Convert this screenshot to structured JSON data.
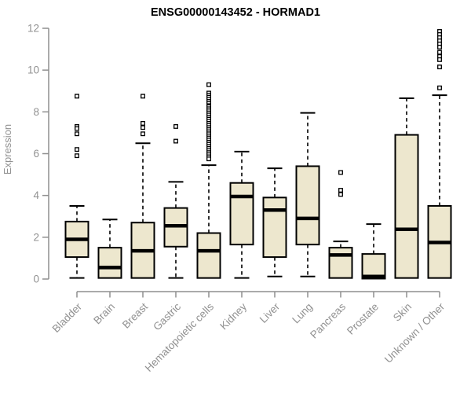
{
  "chart_data": {
    "type": "boxplot",
    "title": "ENSG00000143452 - HORMAD1",
    "ylabel": "Expression",
    "xlabel": "",
    "ylim": [
      0,
      12
    ],
    "yticks": [
      0,
      2,
      4,
      6,
      8,
      10,
      12
    ],
    "grid": false,
    "legend": "none",
    "colors": {
      "box_fill": "#ede7ce",
      "box_stroke": "#000000",
      "median": "#000000",
      "whisker": "#000000",
      "axis": "#8f8f8f",
      "tick_label": "#919191",
      "axis_label": "#919191",
      "title": "#000000",
      "background": "#ffffff"
    },
    "categories": [
      "Bladder",
      "Brain",
      "Breast",
      "Gastric",
      "Hematopoietic cells",
      "Kidney",
      "Liver",
      "Lung",
      "Pancreas",
      "Prostate",
      "Skin",
      "Unknown / Other"
    ],
    "boxes": [
      {
        "category": "Bladder",
        "slug": "bladder",
        "whisker_low": 0.05,
        "q1": 1.05,
        "median": 1.9,
        "q3": 2.75,
        "whisker_high": 3.5,
        "outliers": [
          8.75,
          7.3,
          7.2,
          6.95,
          6.2,
          5.9
        ]
      },
      {
        "category": "Brain",
        "slug": "brain",
        "whisker_low": null,
        "q1": 0.05,
        "median": 0.55,
        "q3": 1.5,
        "whisker_high": 2.85,
        "outliers": []
      },
      {
        "category": "Breast",
        "slug": "breast",
        "whisker_low": null,
        "q1": 0.05,
        "median": 1.35,
        "q3": 2.7,
        "whisker_high": 6.5,
        "outliers": [
          8.75,
          7.45,
          7.25,
          6.95
        ]
      },
      {
        "category": "Gastric",
        "slug": "gastric",
        "whisker_low": 0.05,
        "q1": 1.55,
        "median": 2.55,
        "q3": 3.4,
        "whisker_high": 4.65,
        "outliers": [
          7.3,
          6.6
        ]
      },
      {
        "category": "Hematopoietic cells",
        "slug": "hematopoietic-cells",
        "whisker_low": null,
        "q1": 0.05,
        "median": 1.35,
        "q3": 2.2,
        "whisker_high": 5.45,
        "outliers": [
          9.3,
          8.9,
          8.8,
          8.7,
          8.6,
          8.5,
          8.4,
          8.3,
          8.25,
          8.15,
          8.05,
          7.95,
          7.85,
          7.75,
          7.65,
          7.55,
          7.45,
          7.35,
          7.25,
          7.15,
          7.05,
          6.95,
          6.85,
          6.75,
          6.65,
          6.55,
          6.45,
          6.35,
          6.25,
          6.15,
          6.05,
          5.95,
          5.85,
          5.75
        ]
      },
      {
        "category": "Kidney",
        "slug": "kidney",
        "whisker_low": 0.05,
        "q1": 1.65,
        "median": 3.95,
        "q3": 4.6,
        "whisker_high": 6.1,
        "outliers": []
      },
      {
        "category": "Liver",
        "slug": "liver",
        "whisker_low": 0.12,
        "q1": 1.05,
        "median": 3.3,
        "q3": 3.9,
        "whisker_high": 5.3,
        "outliers": []
      },
      {
        "category": "Lung",
        "slug": "lung",
        "whisker_low": 0.12,
        "q1": 1.65,
        "median": 2.9,
        "q3": 5.4,
        "whisker_high": 7.95,
        "outliers": []
      },
      {
        "category": "Pancreas",
        "slug": "pancreas",
        "whisker_low": null,
        "q1": 0.05,
        "median": 1.15,
        "q3": 1.5,
        "whisker_high": 1.8,
        "outliers": [
          5.1,
          4.25,
          4.05
        ]
      },
      {
        "category": "Prostate",
        "slug": "prostate",
        "whisker_low": null,
        "q1": 0.02,
        "median": 0.12,
        "q3": 1.2,
        "whisker_high": 2.63,
        "outliers": []
      },
      {
        "category": "Skin",
        "slug": "skin",
        "whisker_low": null,
        "q1": 0.05,
        "median": 2.38,
        "q3": 6.9,
        "whisker_high": 8.65,
        "outliers": []
      },
      {
        "category": "Unknown / Other",
        "slug": "unknown-other",
        "whisker_low": null,
        "q1": 0.05,
        "median": 1.75,
        "q3": 3.5,
        "whisker_high": 8.8,
        "outliers": [
          11.85,
          11.7,
          11.55,
          11.4,
          11.25,
          11.1,
          10.85,
          10.65,
          10.5,
          10.15,
          9.15
        ]
      }
    ]
  }
}
